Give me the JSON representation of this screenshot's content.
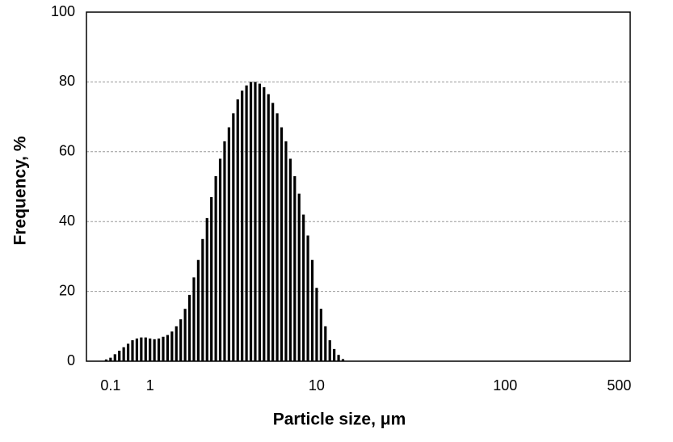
{
  "chart_data": {
    "type": "bar",
    "x_label": "Particle size, μm",
    "y_label": "Frequency, %",
    "categories": [
      null,
      null,
      null,
      null,
      null,
      "0.1",
      null,
      null,
      null,
      null,
      null,
      null,
      null,
      null,
      "1",
      null,
      null,
      null,
      null,
      null,
      null,
      null,
      null,
      null,
      null,
      null,
      null,
      null,
      null,
      null,
      null,
      null,
      null,
      null,
      null,
      null,
      null,
      null,
      null,
      null,
      null,
      null,
      null,
      null,
      null,
      null,
      null,
      null,
      null,
      null,
      null,
      null,
      "10",
      null,
      null,
      null,
      null,
      null,
      null,
      null,
      null,
      null,
      null,
      null,
      null,
      null,
      null,
      null,
      null,
      null,
      null,
      null,
      null,
      null,
      null,
      null,
      null,
      null,
      null,
      null,
      null,
      null,
      null,
      null,
      null,
      null,
      null,
      null,
      null,
      null,
      null,
      null,
      null,
      null,
      null,
      "100",
      null,
      null,
      null,
      null,
      null,
      null,
      null,
      null,
      null,
      null,
      null,
      null,
      null,
      null,
      null,
      null,
      null,
      null,
      null,
      null,
      null,
      null,
      null,
      null,
      null,
      "500",
      null,
      null
    ],
    "values": [
      0,
      0,
      0,
      0,
      0.5,
      1,
      2,
      3,
      4,
      5,
      6,
      6.5,
      6.8,
      6.8,
      6.5,
      6.3,
      6.5,
      7,
      7.5,
      8.5,
      10,
      12,
      15,
      19,
      24,
      29,
      35,
      41,
      47,
      53,
      58,
      63,
      67,
      71,
      75,
      77.5,
      79,
      80,
      80,
      79.5,
      78.5,
      76.5,
      74,
      71,
      67,
      63,
      58,
      53,
      48,
      42,
      36,
      29,
      21,
      15,
      10,
      6,
      3.5,
      1.8,
      0.6,
      0,
      0,
      0,
      0,
      0,
      0,
      0,
      0,
      0,
      0,
      0,
      0,
      0,
      0,
      0,
      0,
      0,
      0,
      0,
      0,
      0,
      0,
      0,
      0,
      0,
      0,
      0,
      0,
      0,
      0,
      0,
      0,
      0,
      0,
      0,
      0,
      0,
      0,
      0,
      0,
      0,
      0,
      0,
      0,
      0,
      0,
      0,
      0,
      0,
      0,
      0,
      0,
      0,
      0,
      0,
      0,
      0,
      0,
      0,
      0,
      0,
      0,
      0,
      0,
      0
    ],
    "color": "#000000",
    "ylim": [
      0,
      100
    ],
    "yticks": [
      0,
      20,
      40,
      60,
      80,
      100
    ],
    "grid": true
  }
}
